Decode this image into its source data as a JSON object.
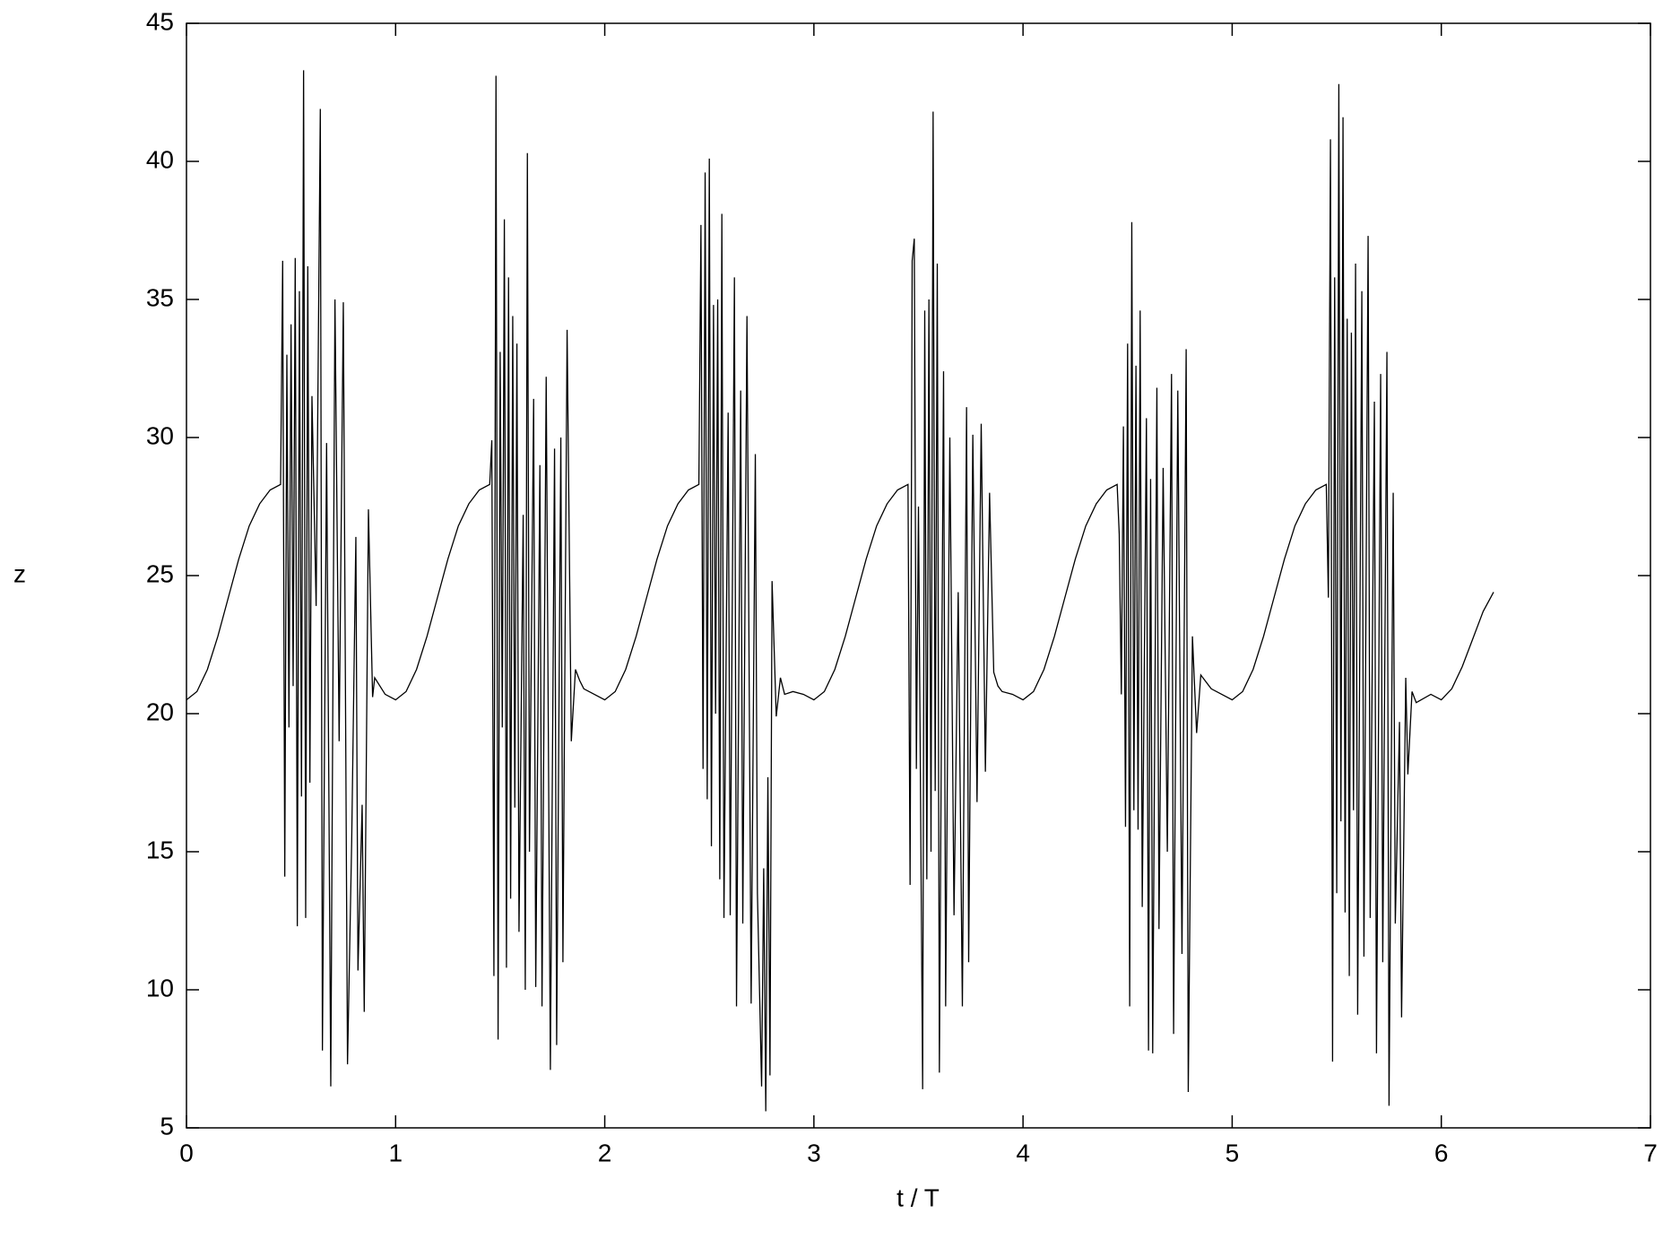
{
  "chart_data": {
    "type": "line",
    "xlabel": "t / T",
    "ylabel": "z",
    "xlim": [
      0,
      7
    ],
    "ylim": [
      5,
      45
    ],
    "xticks": [
      0,
      1,
      2,
      3,
      4,
      5,
      6,
      7
    ],
    "yticks": [
      5,
      10,
      15,
      20,
      25,
      30,
      35,
      40,
      45
    ],
    "color": "#000000",
    "x": [
      0,
      0.05,
      0.1,
      0.15,
      0.2,
      0.25,
      0.3,
      0.35,
      0.4,
      0.45,
      0.46,
      0.47,
      0.48,
      0.49,
      0.5,
      0.51,
      0.52,
      0.53,
      0.54,
      0.55,
      0.56,
      0.57,
      0.58,
      0.59,
      0.6,
      0.62,
      0.64,
      0.65,
      0.67,
      0.69,
      0.71,
      0.73,
      0.75,
      0.77,
      0.79,
      0.81,
      0.82,
      0.84,
      0.85,
      0.87,
      0.89,
      0.9,
      0.95,
      1,
      1.05,
      1.1,
      1.15,
      1.2,
      1.25,
      1.3,
      1.35,
      1.4,
      1.45,
      1.46,
      1.47,
      1.48,
      1.49,
      1.5,
      1.51,
      1.52,
      1.53,
      1.54,
      1.55,
      1.56,
      1.57,
      1.58,
      1.59,
      1.61,
      1.62,
      1.63,
      1.64,
      1.66,
      1.67,
      1.69,
      1.7,
      1.72,
      1.74,
      1.76,
      1.77,
      1.79,
      1.8,
      1.82,
      1.84,
      1.86,
      1.88,
      1.9,
      1.95,
      2,
      2.05,
      2.1,
      2.15,
      2.2,
      2.25,
      2.3,
      2.35,
      2.4,
      2.45,
      2.46,
      2.47,
      2.48,
      2.49,
      2.5,
      2.51,
      2.52,
      2.53,
      2.54,
      2.55,
      2.56,
      2.57,
      2.59,
      2.6,
      2.62,
      2.63,
      2.65,
      2.66,
      2.68,
      2.7,
      2.72,
      2.73,
      2.75,
      2.76,
      2.77,
      2.78,
      2.79,
      2.8,
      2.82,
      2.84,
      2.86,
      2.9,
      2.95,
      3,
      3.05,
      3.1,
      3.15,
      3.2,
      3.25,
      3.3,
      3.35,
      3.4,
      3.45,
      3.46,
      3.47,
      3.48,
      3.49,
      3.5,
      3.52,
      3.53,
      3.54,
      3.55,
      3.56,
      3.57,
      3.58,
      3.59,
      3.6,
      3.62,
      3.63,
      3.65,
      3.67,
      3.69,
      3.71,
      3.73,
      3.74,
      3.76,
      3.78,
      3.8,
      3.82,
      3.84,
      3.86,
      3.88,
      3.9,
      3.95,
      4,
      4.05,
      4.1,
      4.15,
      4.2,
      4.25,
      4.3,
      4.35,
      4.4,
      4.45,
      4.46,
      4.47,
      4.48,
      4.49,
      4.5,
      4.51,
      4.52,
      4.53,
      4.54,
      4.55,
      4.56,
      4.57,
      4.59,
      4.6,
      4.61,
      4.62,
      4.64,
      4.65,
      4.67,
      4.69,
      4.71,
      4.72,
      4.74,
      4.76,
      4.78,
      4.79,
      4.81,
      4.83,
      4.85,
      4.9,
      4.95,
      5,
      5.05,
      5.1,
      5.15,
      5.2,
      5.25,
      5.3,
      5.35,
      5.4,
      5.45,
      5.46,
      5.47,
      5.48,
      5.49,
      5.5,
      5.51,
      5.52,
      5.53,
      5.54,
      5.55,
      5.56,
      5.57,
      5.58,
      5.59,
      5.6,
      5.62,
      5.63,
      5.65,
      5.66,
      5.68,
      5.69,
      5.71,
      5.72,
      5.74,
      5.75,
      5.77,
      5.78,
      5.8,
      5.81,
      5.83,
      5.84,
      5.86,
      5.88,
      5.95,
      6,
      6.05,
      6.1,
      6.15,
      6.2,
      6.25
    ],
    "values": [
      20.5,
      20.8,
      21.6,
      22.8,
      24.2,
      25.6,
      26.8,
      27.6,
      28.1,
      28.3,
      36.4,
      14.1,
      33,
      19.5,
      34.1,
      21,
      36.5,
      12.3,
      35.3,
      17,
      43.3,
      12.6,
      36.2,
      17.5,
      31.5,
      23.9,
      41.9,
      7.8,
      29.8,
      6.5,
      35,
      19,
      34.9,
      7.3,
      15.4,
      26.4,
      10.7,
      16.7,
      9.2,
      27.4,
      20.6,
      21.3,
      20.7,
      20.5,
      20.8,
      21.6,
      22.8,
      24.2,
      25.6,
      26.8,
      27.6,
      28.1,
      28.3,
      29.9,
      10.5,
      43.1,
      8.2,
      33.1,
      19.5,
      37.9,
      10.8,
      35.8,
      13.3,
      34.4,
      16.6,
      33.4,
      12.1,
      27.2,
      10,
      40.3,
      15,
      31.4,
      10.1,
      29,
      9.4,
      32.2,
      7.1,
      29.6,
      8,
      30,
      11,
      33.9,
      19,
      21.6,
      21.2,
      20.9,
      20.7,
      20.5,
      20.8,
      21.6,
      22.8,
      24.2,
      25.6,
      26.8,
      27.6,
      28.1,
      28.3,
      37.7,
      18,
      39.6,
      16.9,
      40.1,
      15.2,
      34.8,
      20,
      35,
      14,
      38.1,
      12.6,
      30.9,
      12.7,
      35.8,
      9.4,
      31.7,
      12.4,
      34.4,
      9.5,
      29.4,
      13.5,
      6.5,
      14.4,
      5.6,
      17.7,
      6.9,
      24.8,
      19.9,
      21.3,
      20.7,
      20.8,
      20.7,
      20.5,
      20.8,
      21.6,
      22.8,
      24.2,
      25.6,
      26.8,
      27.6,
      28.1,
      28.3,
      13.8,
      36.4,
      37.2,
      18,
      27.5,
      6.4,
      34.6,
      14,
      35,
      15,
      41.8,
      17.2,
      36.3,
      7,
      32.4,
      9.4,
      30,
      12.7,
      24.4,
      9.4,
      31.1,
      11,
      30.1,
      16.8,
      30.5,
      17.9,
      28,
      21.5,
      21,
      20.8,
      20.7,
      20.5,
      20.8,
      21.6,
      22.8,
      24.2,
      25.6,
      26.8,
      27.6,
      28.1,
      28.3,
      26.5,
      20.7,
      30.4,
      15.9,
      33.4,
      9.4,
      37.8,
      16.5,
      32.6,
      15.8,
      34.6,
      13,
      30.7,
      7.8,
      28.5,
      7.7,
      31.8,
      12.2,
      28.9,
      15,
      32.3,
      8.4,
      31.7,
      11.3,
      33.2,
      6.3,
      22.8,
      19.3,
      21.4,
      20.9,
      20.7,
      20.5,
      20.8,
      21.6,
      22.8,
      24.2,
      25.6,
      26.8,
      27.6,
      28.1,
      28.3,
      24.2,
      40.8,
      7.4,
      35.8,
      13.5,
      42.8,
      16.1,
      41.6,
      12.8,
      34.3,
      10.5,
      33.8,
      16.5,
      36.3,
      9.1,
      35.3,
      11.2,
      37.3,
      12.6,
      31.3,
      7.7,
      32.3,
      11,
      33.1,
      5.8,
      28,
      12.4,
      19.7,
      9,
      21.3,
      17.8,
      20.8,
      20.4,
      20.7,
      20.5,
      20.9,
      21.7,
      22.7,
      23.7,
      24.4
    ]
  }
}
